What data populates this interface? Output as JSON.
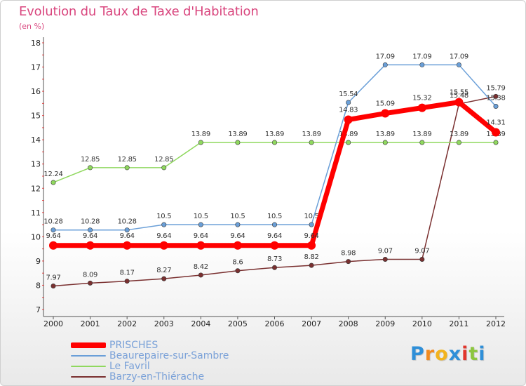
{
  "title": "Evolution du Taux de Taxe d'Habitation",
  "subtitle": "(en %)",
  "brand": {
    "letters": [
      {
        "char": "P",
        "color": "#2f8fd8"
      },
      {
        "char": "r",
        "color": "#f28a1e"
      },
      {
        "char": "o",
        "color": "#f2b31e"
      },
      {
        "char": "x",
        "color": "#2f8fd8"
      },
      {
        "char": "i",
        "color": "#e2362c"
      },
      {
        "char": "t",
        "color": "#8cc63e"
      },
      {
        "char": "i",
        "color": "#2f8fd8"
      }
    ]
  },
  "chart_data": {
    "type": "line",
    "categories": [
      "2000",
      "2001",
      "2002",
      "2003",
      "2004",
      "2005",
      "2006",
      "2007",
      "2008",
      "2009",
      "2010",
      "2011",
      "2012"
    ],
    "ylim": [
      7,
      18
    ],
    "yticks": [
      7,
      8,
      9,
      10,
      11,
      12,
      13,
      14,
      15,
      16,
      17,
      18
    ],
    "grid": false,
    "legend_position": "bottom-left",
    "series": [
      {
        "name": "PRISCHES",
        "color": "#ff0000",
        "width": 7,
        "values": [
          9.64,
          9.64,
          9.64,
          9.64,
          9.64,
          9.64,
          9.64,
          9.64,
          14.83,
          15.09,
          15.32,
          15.55,
          14.31
        ],
        "labels": [
          "9.64",
          "9.64",
          "9.64",
          "9.64",
          "9.64",
          "9.64",
          "9.64",
          "9.64",
          "14.83",
          "15.09",
          "15.32",
          "15.55",
          "14.31"
        ]
      },
      {
        "name": "Beaurepaire-sur-Sambre",
        "color": "#6a9fd8",
        "width": 1.5,
        "values": [
          10.28,
          10.28,
          10.28,
          10.5,
          10.5,
          10.5,
          10.5,
          10.5,
          15.54,
          17.09,
          17.09,
          17.09,
          15.38
        ],
        "labels": [
          "10.28",
          "10.28",
          "10.28",
          "10.5",
          "10.5",
          "10.5",
          "10.5",
          "10.5",
          "15.54",
          "17.09",
          "17.09",
          "17.09",
          "15.38"
        ]
      },
      {
        "name": "Le Favril",
        "color": "#8fd85e",
        "width": 1.5,
        "values": [
          12.24,
          12.85,
          12.85,
          12.85,
          13.89,
          13.89,
          13.89,
          13.89,
          13.89,
          13.89,
          13.89,
          13.89,
          13.89
        ],
        "labels": [
          "12.24",
          "12.85",
          "12.85",
          "12.85",
          "13.89",
          "13.89",
          "13.89",
          "13.89",
          "13.89",
          "13.89",
          "13.89",
          "13.89",
          "13.89"
        ]
      },
      {
        "name": "Barzy-en-Thiérache",
        "color": "#7a3030",
        "width": 1.5,
        "values": [
          7.97,
          8.09,
          8.17,
          8.27,
          8.42,
          8.6,
          8.73,
          8.82,
          8.98,
          9.07,
          9.07,
          15.48,
          15.79
        ],
        "labels": [
          "7.97",
          "8.09",
          "8.17",
          "8.27",
          "8.42",
          "8.6",
          "8.73",
          "8.82",
          "8.98",
          "9.07",
          "9.07",
          "15.48",
          "15.79"
        ]
      }
    ]
  }
}
